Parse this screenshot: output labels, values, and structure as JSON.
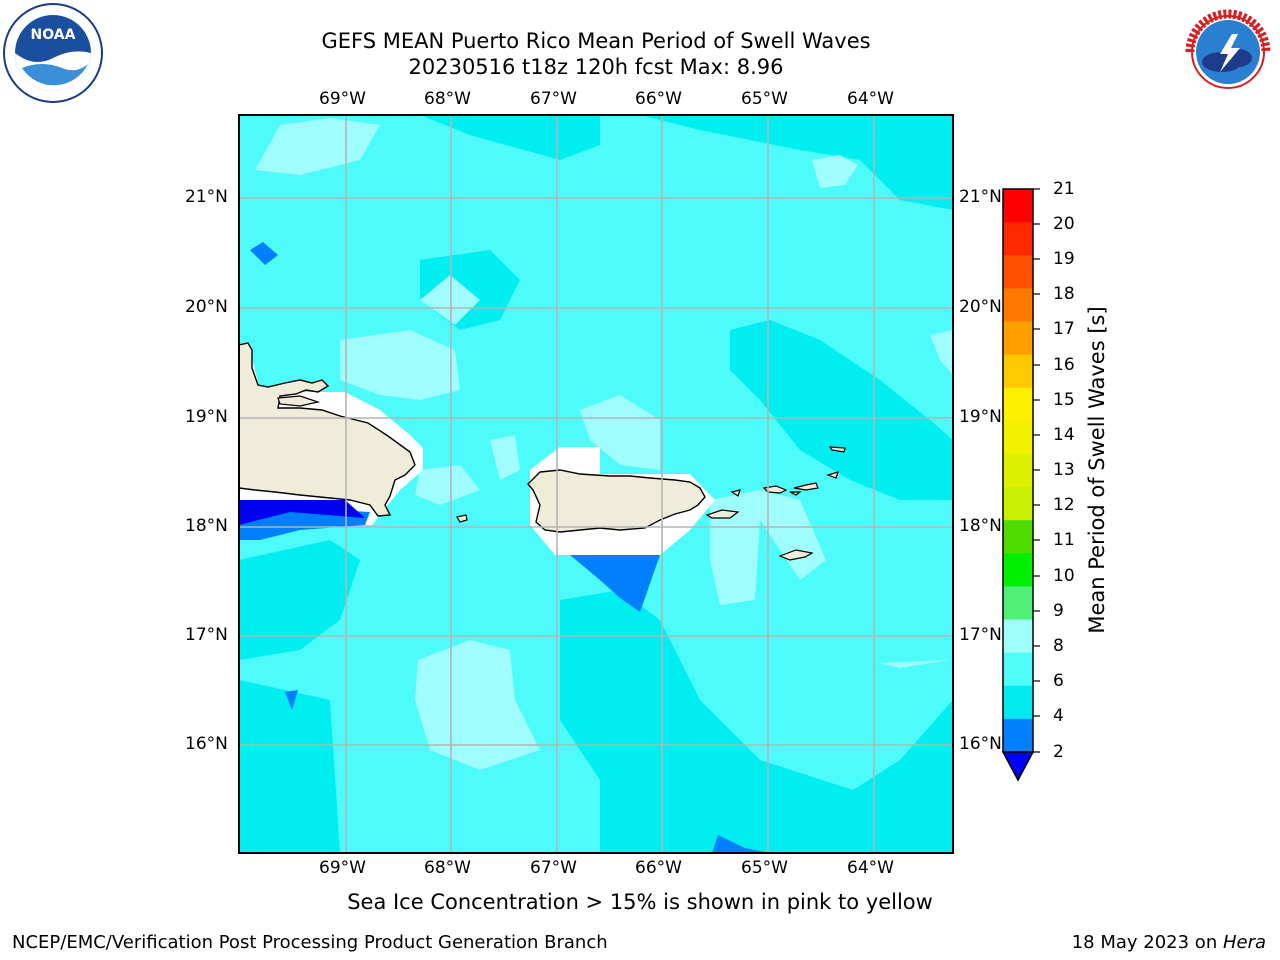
{
  "title": {
    "line1": "GEFS MEAN Puerto Rico Mean Period of Swell Waves",
    "line2": "20230516 t18z 120h fcst   Max: 8.96"
  },
  "map": {
    "lon_labels": [
      "69°W",
      "68°W",
      "67°W",
      "66°W",
      "65°W",
      "64°W"
    ],
    "lat_labels": [
      "21°N",
      "20°N",
      "19°N",
      "18°N",
      "17°N",
      "16°N"
    ],
    "colors": {
      "ocean_base": "#4dfbfb",
      "ocean_light": "#9ffdfd",
      "ocean_mid": "#00eef0",
      "ocean_deep": "#0080ff",
      "ocean_deepest": "#0000f0",
      "land": "#efedd9",
      "gridline": "#b4b4b4"
    }
  },
  "colorbar": {
    "title": "Mean Period of Swell Waves [s]",
    "ticks": [
      "21",
      "20",
      "19",
      "18",
      "17",
      "16",
      "15",
      "14",
      "13",
      "12",
      "11",
      "10",
      "9",
      "8",
      "6",
      "4",
      "2"
    ],
    "colors_top_to_bottom": [
      "#ff0000",
      "#ff2800",
      "#ff5000",
      "#ff7800",
      "#ffa000",
      "#ffc800",
      "#fff000",
      "#f0f000",
      "#dcf000",
      "#c8f000",
      "#50dc00",
      "#00f000",
      "#50f078",
      "#a0fffa",
      "#50fffa",
      "#00ebf0",
      "#0080ff",
      "#0000ff"
    ]
  },
  "note": "Sea Ice Concentration > 15% is shown in pink to yellow",
  "footer": {
    "left": "NCEP/EMC/Verification Post Processing Product Generation Branch",
    "right_prefix": "18 May 2023 on ",
    "right_host": "Hera"
  },
  "logos": {
    "noaa": "NOAA",
    "nws": "NATIONAL WEATHER SERVICE"
  }
}
